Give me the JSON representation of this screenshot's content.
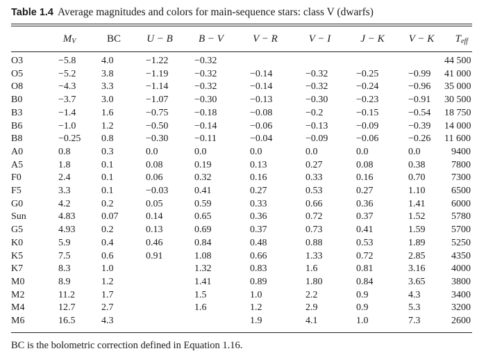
{
  "table": {
    "label": "Table 1.4",
    "caption": "Average magnitudes and colors for main-sequence stars: class V (dwarfs)",
    "headers": [
      "",
      "M",
      "BC",
      "U − B",
      "B − V",
      "V − R",
      "V − I",
      "J − K",
      "V − K",
      "T"
    ],
    "header_subscripts": {
      "M": "V",
      "T": "eff"
    },
    "rows": [
      [
        "O3",
        "−5.8",
        "4.0",
        "−1.22",
        "−0.32",
        "",
        "",
        "",
        "",
        "44 500"
      ],
      [
        "O5",
        "−5.2",
        "3.8",
        "−1.19",
        "−0.32",
        "−0.14",
        "−0.32",
        "−0.25",
        "−0.99",
        "41 000"
      ],
      [
        "O8",
        "−4.3",
        "3.3",
        "−1.14",
        "−0.32",
        "−0.14",
        "−0.32",
        "−0.24",
        "−0.96",
        "35 000"
      ],
      [
        "B0",
        "−3.7",
        "3.0",
        "−1.07",
        "−0.30",
        "−0.13",
        "−0.30",
        "−0.23",
        "−0.91",
        "30 500"
      ],
      [
        "B3",
        "−1.4",
        "1.6",
        "−0.75",
        "−0.18",
        "−0.08",
        "−0.2",
        "−0.15",
        "−0.54",
        "18 750"
      ],
      [
        "B6",
        "−1.0",
        "1.2",
        "−0.50",
        "−0.14",
        "−0.06",
        "−0.13",
        "−0.09",
        "−0.39",
        "14 000"
      ],
      [
        "B8",
        "−0.25",
        "0.8",
        "−0.30",
        "−0.11",
        "−0.04",
        "−0.09",
        "−0.06",
        "−0.26",
        "11 600"
      ],
      [
        "A0",
        "0.8",
        "0.3",
        "0.0",
        "0.0",
        "0.0",
        "0.0",
        "0.0",
        "0.0",
        "9400"
      ],
      [
        "A5",
        "1.8",
        "0.1",
        "0.08",
        "0.19",
        "0.13",
        "0.27",
        "0.08",
        "0.38",
        "7800"
      ],
      [
        "F0",
        "2.4",
        "0.1",
        "0.06",
        "0.32",
        "0.16",
        "0.33",
        "0.16",
        "0.70",
        "7300"
      ],
      [
        "F5",
        "3.3",
        "0.1",
        "−0.03",
        "0.41",
        "0.27",
        "0.53",
        "0.27",
        "1.10",
        "6500"
      ],
      [
        "G0",
        "4.2",
        "0.2",
        "0.05",
        "0.59",
        "0.33",
        "0.66",
        "0.36",
        "1.41",
        "6000"
      ],
      [
        "Sun",
        "4.83",
        "0.07",
        "0.14",
        "0.65",
        "0.36",
        "0.72",
        "0.37",
        "1.52",
        "5780"
      ],
      [
        "G5",
        "4.93",
        "0.2",
        "0.13",
        "0.69",
        "0.37",
        "0.73",
        "0.41",
        "1.59",
        "5700"
      ],
      [
        "K0",
        "5.9",
        "0.4",
        "0.46",
        "0.84",
        "0.48",
        "0.88",
        "0.53",
        "1.89",
        "5250"
      ],
      [
        "K5",
        "7.5",
        "0.6",
        "0.91",
        "1.08",
        "0.66",
        "1.33",
        "0.72",
        "2.85",
        "4350"
      ],
      [
        "K7",
        "8.3",
        "1.0",
        "",
        "1.32",
        "0.83",
        "1.6",
        "0.81",
        "3.16",
        "4000"
      ],
      [
        "M0",
        "8.9",
        "1.2",
        "",
        "1.41",
        "0.89",
        "1.80",
        "0.84",
        "3.65",
        "3800"
      ],
      [
        "M2",
        "11.2",
        "1.7",
        "",
        "1.5",
        "1.0",
        "2.2",
        "0.9",
        "4.3",
        "3400"
      ],
      [
        "M4",
        "12.7",
        "2.7",
        "",
        "1.6",
        "1.2",
        "2.9",
        "0.9",
        "5.3",
        "3200"
      ],
      [
        "M6",
        "16.5",
        "4.3",
        "",
        "",
        "1.9",
        "4.1",
        "1.0",
        "7.3",
        "2600"
      ]
    ],
    "footnote": "BC is the bolometric correction defined in Equation 1.16."
  }
}
